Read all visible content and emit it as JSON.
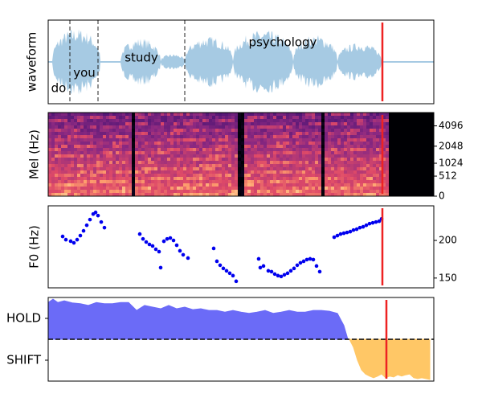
{
  "chart_data": [
    {
      "type": "waveform",
      "ylabel": "waveform",
      "words": [
        "do",
        "you",
        "study",
        "psychology"
      ],
      "boundaries": [
        27,
        62,
        170
      ],
      "xlim": [
        0,
        480
      ],
      "color": "#a6cae3",
      "marker_x": 416,
      "marker_color": "#ee2222"
    },
    {
      "type": "spectrogram",
      "ylabel": "Mel (Hz)",
      "yscale": "mel",
      "ylim": [
        0,
        6200
      ],
      "yticks": [
        0,
        512,
        1024,
        2048,
        4096
      ],
      "xlim": [
        0,
        480
      ],
      "marker_x": 416,
      "marker_color": "#ee2222"
    },
    {
      "type": "scatter",
      "ylabel": "F0 (Hz)",
      "xlim": [
        0,
        480
      ],
      "ylim": [
        137,
        246
      ],
      "yticks": [
        150,
        200
      ],
      "color": "#0000ee",
      "x": [
        18,
        22,
        28,
        32,
        36,
        40,
        44,
        48,
        52,
        56,
        59,
        62,
        66,
        70,
        114,
        118,
        122,
        126,
        130,
        134,
        138,
        140,
        144,
        148,
        152,
        156,
        160,
        164,
        168,
        174,
        206,
        210,
        214,
        218,
        222,
        226,
        230,
        234,
        262,
        264,
        268,
        274,
        278,
        282,
        286,
        290,
        294,
        298,
        302,
        306,
        310,
        314,
        318,
        322,
        326,
        330,
        334,
        338,
        356,
        360,
        364,
        368,
        372,
        376,
        380,
        384,
        388,
        392,
        396,
        400,
        404,
        408,
        412,
        415
      ],
      "values": [
        205.3,
        201,
        199,
        196.8,
        201,
        206.4,
        212.8,
        220.2,
        227.7,
        235.1,
        237.2,
        233,
        224.5,
        217,
        208.5,
        202,
        197.9,
        194.7,
        192.6,
        188.3,
        185.1,
        163.8,
        198.9,
        202,
        203.2,
        200,
        193.6,
        186.2,
        180.9,
        176.6,
        189.4,
        172.3,
        167,
        162.8,
        159.6,
        156.4,
        153.2,
        145.7,
        175.5,
        163.8,
        166,
        159.6,
        158.5,
        155.3,
        153.2,
        152.1,
        154.3,
        156.4,
        159.6,
        162.8,
        167,
        170.2,
        172.3,
        174.5,
        175.5,
        174.5,
        166,
        158.5,
        204.3,
        206.4,
        208.5,
        209.6,
        210.6,
        211.7,
        213.8,
        214.9,
        217,
        218.1,
        220.2,
        222.3,
        223.4,
        224.5,
        225.5,
        228.7
      ],
      "marker_x": 416,
      "marker_color": "#ee2222"
    },
    {
      "type": "area",
      "xlim": [
        0,
        480
      ],
      "ylim": [
        -1,
        1
      ],
      "yticks": [
        {
          "value": 0.5,
          "label": "HOLD"
        },
        {
          "value": -0.5,
          "label": "SHIFT"
        }
      ],
      "threshold": 0,
      "series": [
        {
          "color": "#6b6bf7",
          "x": [
            0,
            6,
            12,
            20,
            30,
            40,
            50,
            60,
            70,
            80,
            90,
            100,
            110,
            120,
            130,
            140,
            150,
            160,
            170,
            180,
            190,
            200,
            210,
            220,
            230,
            240,
            250,
            260,
            270,
            280,
            290,
            300,
            310,
            320,
            330,
            340,
            350,
            360,
            368,
            373
          ],
          "values": [
            0.88,
            0.96,
            0.88,
            0.92,
            0.87,
            0.85,
            0.81,
            0.88,
            0.85,
            0.85,
            0.88,
            0.88,
            0.69,
            0.81,
            0.77,
            0.73,
            0.81,
            0.73,
            0.77,
            0.71,
            0.73,
            0.69,
            0.69,
            0.65,
            0.69,
            0.65,
            0.62,
            0.65,
            0.69,
            0.62,
            0.65,
            0.69,
            0.65,
            0.65,
            0.69,
            0.69,
            0.67,
            0.62,
            0.33,
            0
          ]
        },
        {
          "color": "#ffc766",
          "x": [
            375,
            380,
            385,
            390,
            395,
            400,
            405,
            410,
            415,
            420,
            425,
            430,
            435,
            440,
            445,
            450,
            455,
            460,
            465,
            470,
            475
          ],
          "values": [
            0,
            -0.19,
            -0.5,
            -0.73,
            -0.83,
            -0.88,
            -0.92,
            -0.88,
            -0.83,
            -0.92,
            -0.88,
            -0.9,
            -0.85,
            -0.88,
            -0.85,
            -0.83,
            -0.92,
            -0.94,
            -0.92,
            -0.94,
            -0.96
          ]
        }
      ],
      "marker_x": 421,
      "marker_color": "#ee2222"
    }
  ]
}
